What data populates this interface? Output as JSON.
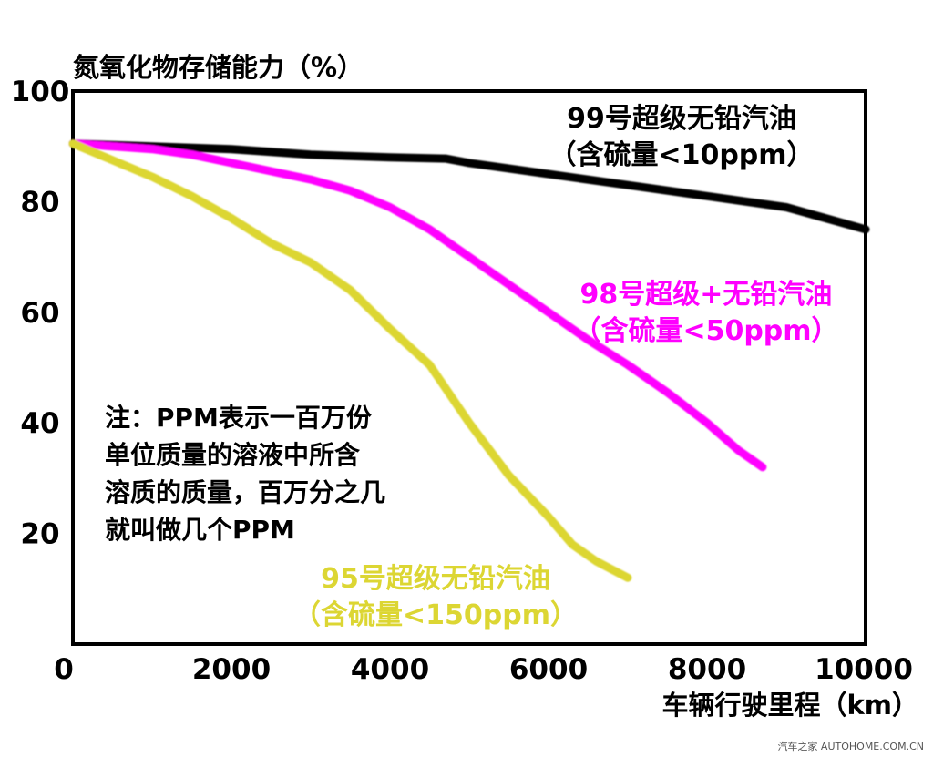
{
  "chart_data": {
    "type": "line",
    "ylabel": "氮氧化物存储能力（%）",
    "xlabel": "车辆行驶里程（km）",
    "xlim": [
      0,
      10000
    ],
    "ylim": [
      0,
      100
    ],
    "x_ticks": [
      "0",
      "2000",
      "4000",
      "6000",
      "8000",
      "10000"
    ],
    "y_ticks": [
      "20",
      "40",
      "60",
      "80",
      "100"
    ],
    "grid": false,
    "series": [
      {
        "label_lines": [
          "99号超级无铅汽油",
          "（含硫量<10ppm）"
        ],
        "color": "#000000",
        "x": [
          0,
          1000,
          2000,
          3000,
          4000,
          4700,
          5000,
          6000,
          7000,
          8000,
          9000,
          10000
        ],
        "y": [
          90.5,
          90,
          89.5,
          88.5,
          88,
          87.8,
          87,
          85,
          83,
          81,
          79,
          75
        ]
      },
      {
        "label_lines": [
          "98号超级+无铅汽油",
          "（含硫量<50ppm）"
        ],
        "color": "#ff00ff",
        "x": [
          0,
          500,
          1000,
          1500,
          2000,
          2500,
          3000,
          3500,
          4000,
          4500,
          5000,
          5500,
          6000,
          6500,
          7000,
          7500,
          8000,
          8400,
          8700
        ],
        "y": [
          90.5,
          90,
          89.5,
          88.5,
          87,
          85.5,
          84,
          82,
          79,
          75,
          70,
          65,
          60,
          55,
          50.5,
          45.5,
          40,
          35,
          32
        ]
      },
      {
        "label_lines": [
          "95号超级无铅汽油",
          "（含硫量<150ppm）"
        ],
        "color": "#dcd633",
        "x": [
          0,
          500,
          1000,
          1500,
          2000,
          2500,
          3000,
          3500,
          4000,
          4500,
          5000,
          5500,
          6000,
          6300,
          6600,
          7000
        ],
        "y": [
          90.5,
          87.5,
          84.5,
          81,
          77,
          72.5,
          69,
          64,
          57,
          50.5,
          40,
          30.5,
          23,
          18,
          15,
          12
        ]
      }
    ],
    "note_lines": [
      "注：PPM表示一百万份",
      "单位质量的溶液中所含",
      "溶质的质量，百万分之几",
      "就叫做几个PPM"
    ]
  },
  "watermark": "汽车之家 AUTOHOME.COM.CN"
}
